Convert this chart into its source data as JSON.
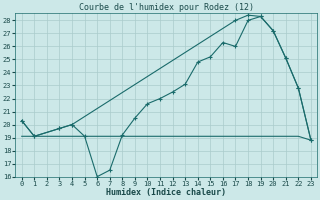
{
  "title": "Courbe de l'humidex pour Rodez (12)",
  "xlabel": "Humidex (Indice chaleur)",
  "xlim": [
    -0.5,
    23.5
  ],
  "ylim": [
    16,
    28.6
  ],
  "yticks": [
    16,
    17,
    18,
    19,
    20,
    21,
    22,
    23,
    24,
    25,
    26,
    27,
    28
  ],
  "xticks": [
    0,
    1,
    2,
    3,
    4,
    5,
    6,
    7,
    8,
    9,
    10,
    11,
    12,
    13,
    14,
    15,
    16,
    17,
    18,
    19,
    20,
    21,
    22,
    23
  ],
  "bg_color": "#cce8e8",
  "grid_color": "#aacccc",
  "line_color": "#1a6b6b",
  "line1_x": [
    0,
    1,
    3,
    4,
    5,
    6,
    7,
    8,
    9,
    10,
    11,
    12,
    13,
    14,
    15,
    16,
    17,
    18,
    19,
    20,
    21,
    22,
    23
  ],
  "line1_y": [
    20.3,
    19.1,
    19.7,
    20.0,
    19.1,
    16.0,
    16.5,
    19.2,
    20.5,
    21.6,
    22.0,
    22.5,
    23.1,
    24.8,
    25.2,
    26.3,
    26.0,
    28.0,
    28.3,
    27.2,
    25.1,
    22.8,
    18.8
  ],
  "line2_x": [
    0,
    1,
    3,
    4,
    17,
    18,
    19,
    20,
    21,
    22,
    23
  ],
  "line2_y": [
    20.3,
    19.1,
    19.7,
    20.0,
    28.0,
    28.4,
    28.3,
    27.2,
    25.1,
    22.8,
    18.8
  ],
  "line3_x": [
    0,
    1,
    3,
    4,
    5,
    6,
    7,
    8,
    9,
    10,
    11,
    12,
    13,
    14,
    15,
    16,
    17,
    18,
    19,
    20,
    21,
    22,
    23
  ],
  "line3_y": [
    19.1,
    19.1,
    19.1,
    19.1,
    19.1,
    19.1,
    19.1,
    19.1,
    19.1,
    19.1,
    19.1,
    19.1,
    19.1,
    19.1,
    19.1,
    19.1,
    19.1,
    19.1,
    19.1,
    19.1,
    19.1,
    19.1,
    18.8
  ]
}
